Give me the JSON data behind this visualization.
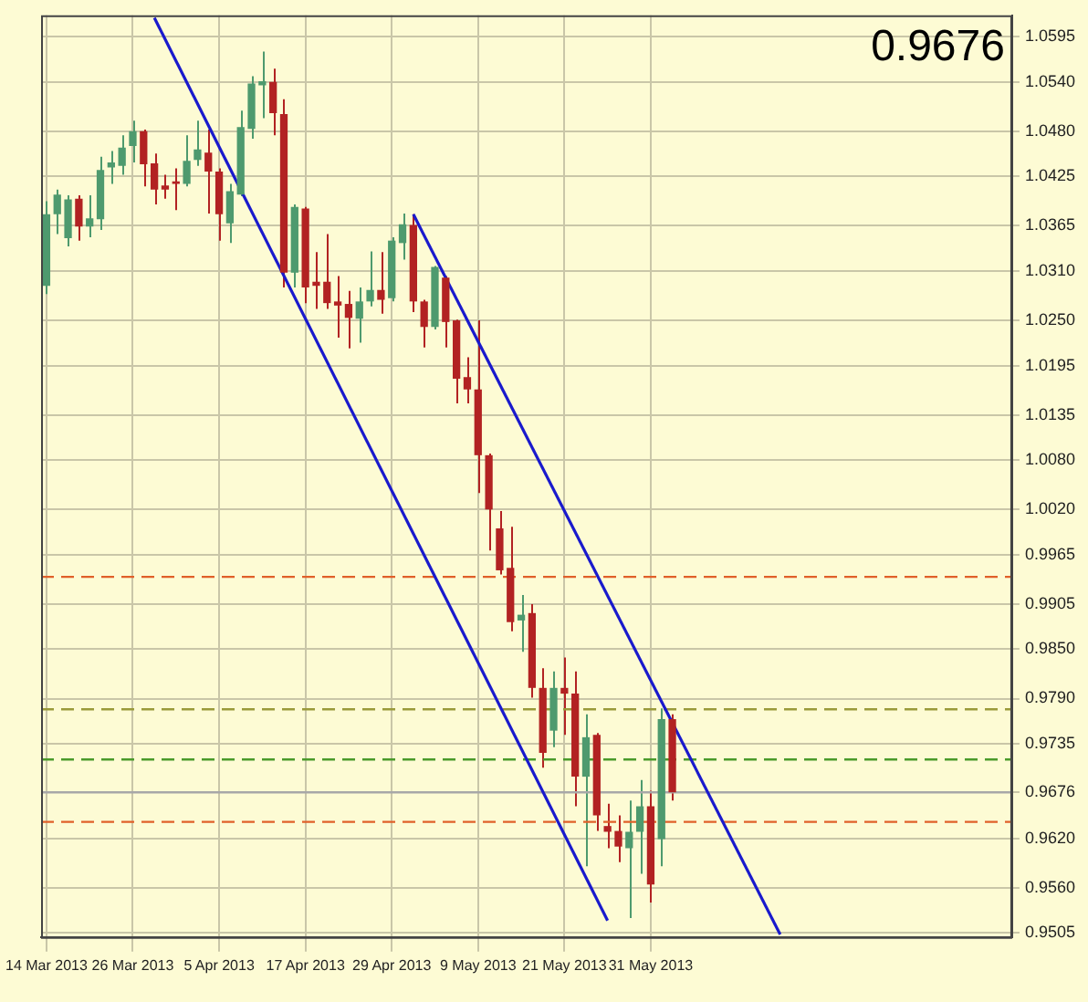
{
  "chart_data": {
    "type": "candlestick",
    "categories": [
      "14 Mar 2013",
      null,
      null,
      null,
      null,
      null,
      null,
      null,
      "26 Mar 2013",
      null,
      null,
      null,
      null,
      null,
      null,
      null,
      "5 Apr 2013",
      null,
      null,
      null,
      null,
      null,
      null,
      null,
      "17 Apr 2013",
      null,
      null,
      null,
      null,
      null,
      null,
      null,
      "29 Apr 2013",
      null,
      null,
      null,
      null,
      null,
      null,
      null,
      "9 May 2013",
      null,
      null,
      null,
      null,
      null,
      null,
      null,
      "21 May 2013",
      null,
      null,
      null,
      null,
      null,
      null,
      null,
      "31 May 2013",
      null,
      null,
      null,
      null,
      null,
      null,
      null,
      null,
      null,
      null,
      null,
      null,
      null,
      null,
      null,
      null,
      null,
      null,
      null,
      null,
      null,
      null,
      null,
      null,
      null,
      null,
      null,
      null,
      null,
      null,
      null,
      null,
      null
    ],
    "ohlc": [
      [
        1.0292,
        1.0395,
        1.0282,
        1.0379
      ],
      [
        1.0379,
        1.0409,
        1.0355,
        1.0403
      ],
      [
        1.035,
        1.0402,
        1.034,
        1.0397
      ],
      [
        1.0398,
        1.0402,
        1.0347,
        1.0364
      ],
      [
        1.0364,
        1.0402,
        1.0351,
        1.0374
      ],
      [
        1.0373,
        1.0449,
        1.036,
        1.0433
      ],
      [
        1.0436,
        1.0456,
        1.0416,
        1.0442
      ],
      [
        1.0438,
        1.0475,
        1.0427,
        1.046
      ],
      [
        1.0462,
        1.0493,
        1.0442,
        1.048
      ],
      [
        1.048,
        1.0482,
        1.0413,
        1.044
      ],
      [
        1.0441,
        1.0453,
        1.0391,
        1.0409
      ],
      [
        1.0414,
        1.0427,
        1.0398,
        1.0409
      ],
      [
        1.0419,
        1.0435,
        1.0384,
        1.0416
      ],
      [
        1.0416,
        1.0475,
        1.0413,
        1.0444
      ],
      [
        1.0445,
        1.0493,
        1.0438,
        1.0458
      ],
      [
        1.0454,
        1.0482,
        1.038,
        1.0431
      ],
      [
        1.0431,
        1.0435,
        1.0347,
        1.0379
      ],
      [
        1.0368,
        1.0416,
        1.0344,
        1.0407
      ],
      [
        1.0403,
        1.0505,
        1.0401,
        1.0485
      ],
      [
        1.0483,
        1.0547,
        1.0471,
        1.0538
      ],
      [
        1.0536,
        1.0577,
        1.0496,
        1.0541
      ],
      [
        1.054,
        1.0556,
        1.0475,
        1.0502
      ],
      [
        1.0501,
        1.0519,
        1.029,
        1.0308
      ],
      [
        1.0308,
        1.0391,
        1.029,
        1.0388
      ],
      [
        1.0386,
        1.0388,
        1.0271,
        1.029
      ],
      [
        1.0297,
        1.0333,
        1.0264,
        1.0292
      ],
      [
        1.0297,
        1.0355,
        1.0264,
        1.0271
      ],
      [
        1.0273,
        1.0304,
        1.0229,
        1.0268
      ],
      [
        1.027,
        1.0286,
        1.0216,
        1.0253
      ],
      [
        1.0252,
        1.029,
        1.0223,
        1.0273
      ],
      [
        1.0273,
        1.0334,
        1.0267,
        1.0287
      ],
      [
        1.0287,
        1.0333,
        1.0258,
        1.0275
      ],
      [
        1.0277,
        1.0351,
        1.0273,
        1.0347
      ],
      [
        1.0344,
        1.038,
        1.0324,
        1.0367
      ],
      [
        1.0366,
        1.0379,
        1.026,
        1.0273
      ],
      [
        1.0273,
        1.0275,
        1.0217,
        1.0242
      ],
      [
        1.0242,
        1.0316,
        1.0239,
        1.0315
      ],
      [
        1.0302,
        1.0304,
        1.0217,
        1.0248
      ],
      [
        1.025,
        1.0251,
        1.0149,
        1.0179
      ],
      [
        1.0181,
        1.0205,
        1.0149,
        1.0166
      ],
      [
        1.0166,
        1.025,
        1.004,
        1.0086
      ],
      [
        1.0086,
        1.0088,
        0.997,
        1.002
      ],
      [
        0.9997,
        1.0018,
        0.9941,
        0.9946
      ],
      [
        0.9949,
        0.9999,
        0.9872,
        0.9883
      ],
      [
        0.9885,
        0.9916,
        0.9847,
        0.9892
      ],
      [
        0.9894,
        0.9905,
        0.9791,
        0.9803
      ],
      [
        0.9803,
        0.9827,
        0.9706,
        0.9724
      ],
      [
        0.9751,
        0.9823,
        0.9731,
        0.9803
      ],
      [
        0.9803,
        0.984,
        0.9746,
        0.9796
      ],
      [
        0.9796,
        0.9823,
        0.9659,
        0.9695
      ],
      [
        0.9695,
        0.9771,
        0.9586,
        0.9743
      ],
      [
        0.9746,
        0.9748,
        0.9629,
        0.9648
      ],
      [
        0.9635,
        0.9662,
        0.9608,
        0.9628
      ],
      [
        0.9629,
        0.9648,
        0.9591,
        0.961
      ],
      [
        0.9608,
        0.9666,
        0.9523,
        0.9628
      ],
      [
        0.9628,
        0.9691,
        0.9577,
        0.9659
      ],
      [
        0.9659,
        0.9678,
        0.9542,
        0.9564
      ],
      [
        0.9619,
        0.9778,
        0.9586,
        0.9765
      ],
      [
        0.9765,
        0.9771,
        0.9666,
        0.9676
      ],
      null,
      null,
      null,
      null,
      null,
      null,
      null,
      null,
      null,
      null,
      null,
      null,
      null,
      null,
      null,
      null,
      null,
      null,
      null,
      null,
      null,
      null,
      null,
      null,
      null,
      null,
      null,
      null,
      null,
      null,
      null
    ],
    "colors": [
      "#4e9a6e",
      "#4e9a6e",
      "#4e9a6e",
      "#b22222",
      "#4e9a6e",
      "#4e9a6e",
      "#4e9a6e",
      "#4e9a6e",
      "#4e9a6e",
      "#b22222",
      "#b22222",
      "#b22222",
      "#b22222",
      "#4e9a6e",
      "#4e9a6e",
      "#b22222",
      "#b22222",
      "#4e9a6e",
      "#4e9a6e",
      "#4e9a6e",
      "#4e9a6e",
      "#b22222",
      "#b22222",
      "#4e9a6e",
      "#b22222",
      "#b22222",
      "#b22222",
      "#b22222",
      "#b22222",
      "#4e9a6e",
      "#4e9a6e",
      "#b22222",
      "#4e9a6e",
      "#4e9a6e",
      "#b22222",
      "#b22222",
      "#4e9a6e",
      "#b22222",
      "#b22222",
      "#b22222",
      "#b22222",
      "#b22222",
      "#b22222",
      "#b22222",
      "#4e9a6e",
      "#b22222",
      "#b22222",
      "#4e9a6e",
      "#b22222",
      "#b22222",
      "#4e9a6e",
      "#b22222",
      "#b22222",
      "#b22222",
      "#4e9a6e",
      "#4e9a6e",
      "#b22222",
      "#4e9a6e",
      "#b22222",
      null,
      null,
      null,
      null,
      null,
      null,
      null,
      null,
      null,
      null,
      null,
      null,
      null,
      null,
      null,
      null,
      null,
      null,
      null,
      null,
      null,
      null,
      null,
      null,
      null,
      null,
      null,
      null,
      null,
      null,
      null
    ],
    "series": [
      {
        "type": "line",
        "color": "#1a1acc",
        "line_style": "solid",
        "values": [
          null,
          null,
          null,
          null,
          null,
          null,
          null,
          null,
          null,
          null,
          null,
          null,
          null,
          null,
          null,
          null,
          null,
          null,
          null,
          null,
          null,
          null,
          null,
          null,
          null,
          null,
          null,
          null,
          null,
          null,
          null,
          null,
          null,
          null,
          1.0379,
          null,
          null,
          null,
          null,
          null,
          null,
          null,
          null,
          null,
          null,
          null,
          null,
          null,
          null,
          null,
          null,
          null,
          null,
          null,
          null,
          null,
          null,
          null,
          null,
          null,
          null,
          null,
          null,
          null,
          null,
          null,
          null,
          null,
          0.9503,
          null,
          null,
          null,
          null,
          null,
          null,
          null,
          null,
          null,
          null,
          null,
          null,
          null,
          null,
          null,
          null,
          null,
          null,
          null,
          null,
          null
        ]
      },
      {
        "type": "line",
        "color": "#1a1acc",
        "line_style": "solid",
        "values": [
          null,
          null,
          null,
          null,
          null,
          null,
          null,
          null,
          null,
          null,
          1.0618,
          null,
          null,
          null,
          null,
          null,
          null,
          null,
          null,
          null,
          null,
          null,
          null,
          null,
          null,
          null,
          null,
          null,
          null,
          null,
          null,
          null,
          null,
          null,
          null,
          null,
          null,
          null,
          null,
          null,
          null,
          null,
          null,
          null,
          null,
          null,
          null,
          null,
          null,
          null,
          null,
          null,
          0.952,
          null,
          null,
          null,
          null,
          null,
          null,
          null,
          null,
          null,
          null,
          null,
          null,
          null,
          null,
          null,
          null,
          null,
          null,
          null,
          null,
          null,
          null,
          null,
          null,
          null,
          null,
          null,
          null,
          null,
          null,
          null,
          null,
          null,
          null,
          null,
          null,
          null
        ]
      }
    ],
    "ylim": [
      0.95,
      1.0621
    ],
    "yticks": [
      1.0595,
      {
        "value": 1.054,
        "label": "1.0540"
      },
      {
        "value": 1.048,
        "label": "1.0480"
      },
      1.0425,
      1.0365,
      {
        "value": 1.031,
        "label": "1.0310"
      },
      {
        "value": 1.025,
        "label": "1.0250"
      },
      1.0195,
      1.0135,
      {
        "value": 1.008,
        "label": "1.0080"
      },
      {
        "value": 1.002,
        "label": "1.0020"
      },
      0.9965,
      0.9905,
      {
        "value": 0.985,
        "label": "0.9850"
      },
      {
        "value": 0.979,
        "label": "0.9790"
      },
      0.9735,
      0.9676,
      {
        "value": 0.962,
        "label": "0.9620"
      },
      {
        "value": 0.956,
        "label": "0.9560"
      },
      0.9505
    ],
    "ref_lines": [
      {
        "axis": "y",
        "value": 0.9938,
        "color": "#e0602a",
        "line_style": "dashed"
      },
      {
        "axis": "y",
        "value": 0.9777,
        "color": "#9a9a3a",
        "line_style": "dashed"
      },
      {
        "axis": "y",
        "value": 0.9716,
        "color": "#4a9a2a",
        "line_style": "dashed"
      },
      {
        "axis": "y",
        "value": 0.9676,
        "color": "#a8a8a8",
        "line_style": "solid"
      },
      {
        "axis": "y",
        "value": 0.964,
        "color": "#e0602a",
        "line_style": "dashed"
      }
    ],
    "annotations": [
      "0.9676"
    ],
    "grid": true
  }
}
